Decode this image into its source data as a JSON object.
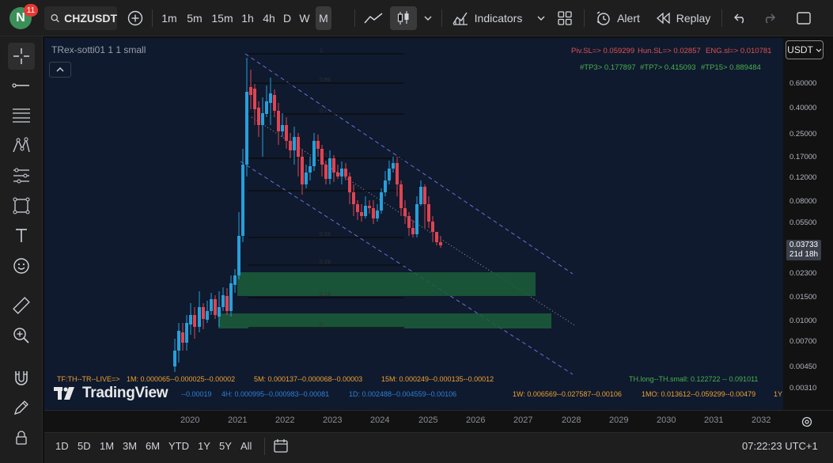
{
  "header": {
    "avatar_letter": "N",
    "notification_count": "11",
    "symbol": "CHZUSDT",
    "intervals": [
      "1m",
      "5m",
      "15m",
      "1h",
      "4h",
      "D",
      "W",
      "M"
    ],
    "active_interval": "M",
    "indicators_label": "Indicators",
    "alert_label": "Alert",
    "replay_label": "Replay"
  },
  "chart": {
    "indicator_label": "TRex-sotti01 1 1 small",
    "sl_line": {
      "piv": "Piv.SL=> 0.059299",
      "hun": "Hun.SL=> 0.02857",
      "eng": "ENG.sl=> 0.010781"
    },
    "tp_line": {
      "tp3": "#TP3> 0.177897",
      "tp7": "#TP7> 0.415093",
      "tp15": "#TP15> 0.889484"
    },
    "fib_labels": [
      "1",
      "0.85",
      "0.7",
      "0.5",
      "0.33",
      "0.23",
      "0.13",
      "0"
    ],
    "tf_row1": {
      "prefix": "TF:TH--TR--LIVE=>",
      "m1": "1M: 0.000065--0.000025--0.00002",
      "m5": "5M: 0.000137--0.000068--0.00003",
      "m15": "15M: 0.000249--0.000135--0.00012",
      "th": "TH.long--TH.small: 0.122722 -- 0.091011"
    },
    "tf_row2": {
      "h1": "--0.00019",
      "h4": "4H: 0.000995--0.000983--0.00081",
      "d1": "1D: 0.002488--0.004559--0.00106",
      "w1": "1W: 0.006569--0.027587--0.00106",
      "mo1": "1MO: 0.013612--0.059299--0.00479",
      "y1": "1Y"
    },
    "watermark": "TradingView",
    "colors": {
      "up": "#26a0da",
      "down": "#e04452",
      "zone": "#1b5e3a",
      "channel": "#6a6fd8",
      "sl_text": "#e05050",
      "tp_text": "#4caf50",
      "tf_text": "#f0a030",
      "tf_blue": "#2f7fd8"
    }
  },
  "chart_data": {
    "type": "candlestick",
    "scale": "log",
    "y_ticks": [
      "0.60000",
      "0.40000",
      "0.25000",
      "0.17000",
      "0.12000",
      "0.08000",
      "0.05500",
      "0.03733",
      "0.02300",
      "0.01500",
      "0.01000",
      "0.00700",
      "0.00450",
      "0.00310"
    ],
    "x_ticks": [
      "2020",
      "2021",
      "2022",
      "2023",
      "2024",
      "2025",
      "2026",
      "2027",
      "2028",
      "2029",
      "2030",
      "2031",
      "2032"
    ],
    "last_price": "0.03733",
    "countdown": "21d 18h",
    "currency": "USDT"
  },
  "bottom": {
    "ranges": [
      "1D",
      "5D",
      "1M",
      "3M",
      "6M",
      "YTD",
      "1Y",
      "5Y",
      "All"
    ],
    "clock": "07:22:23 UTC+1"
  }
}
